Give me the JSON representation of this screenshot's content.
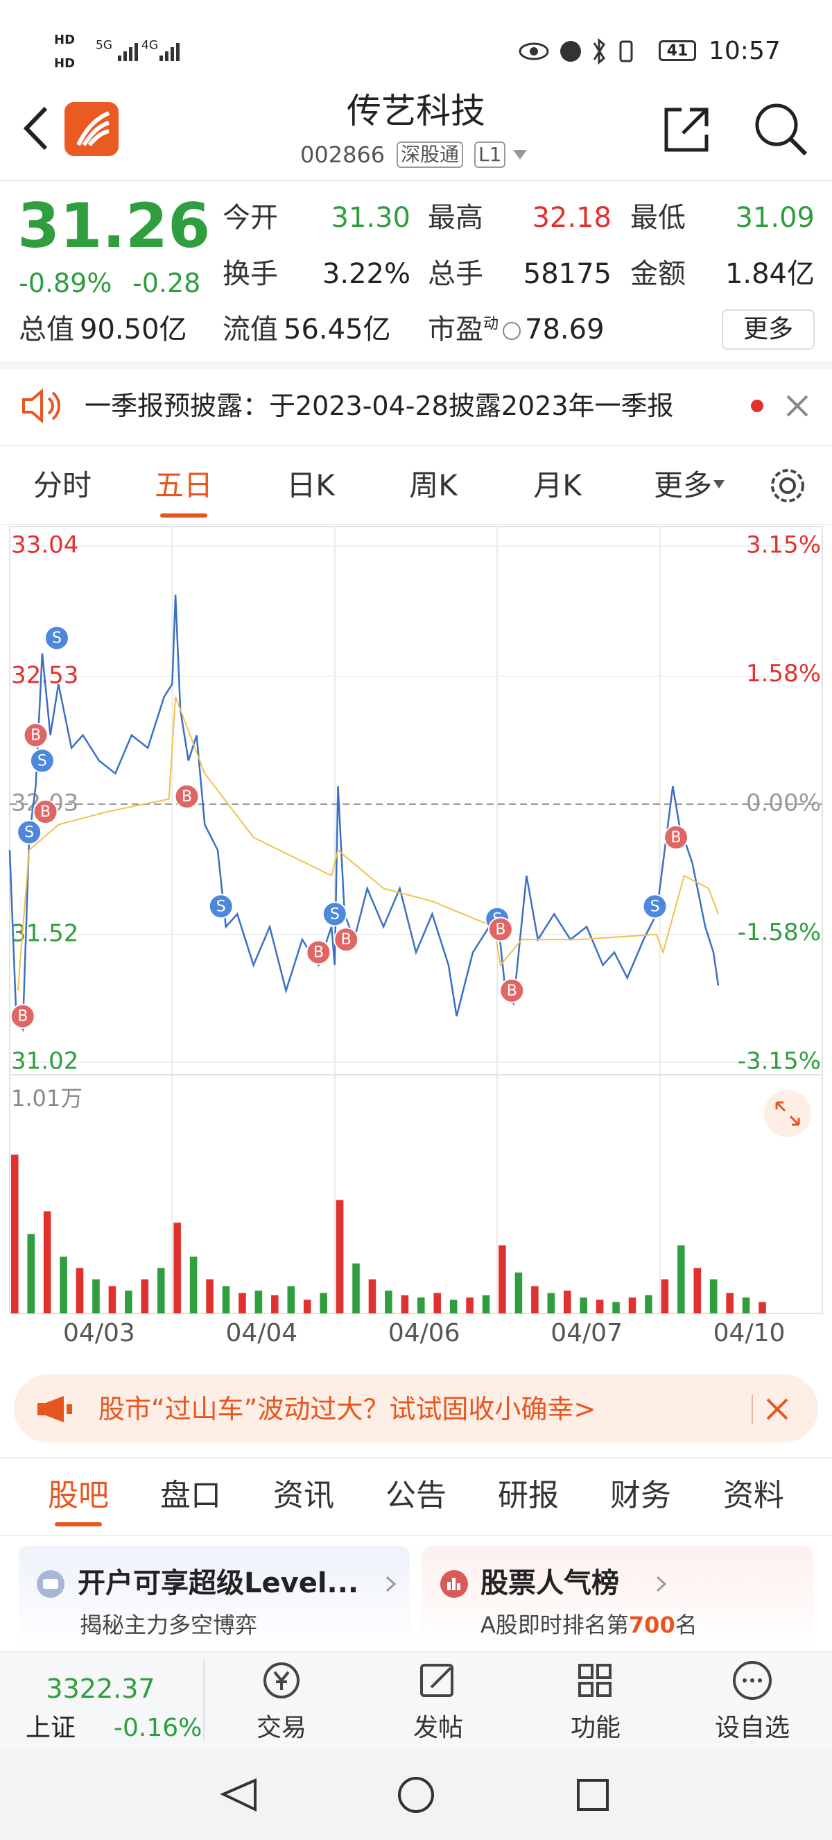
{
  "status": {
    "network": [
      "HD",
      "HD",
      "5G",
      "4G"
    ],
    "battery": "41",
    "time": "10:57"
  },
  "header": {
    "name": "传艺科技",
    "code": "002866",
    "tags": [
      "深股通",
      "L1"
    ]
  },
  "quote": {
    "price": "31.26",
    "change_pct": "-0.89%",
    "change": "-0.28",
    "color": "#2e9e3e",
    "fields": [
      {
        "label": "今开",
        "value": "31.30",
        "color": "#2e9e3e"
      },
      {
        "label": "最高",
        "value": "32.18",
        "color": "#e0312e"
      },
      {
        "label": "最低",
        "value": "31.09",
        "color": "#2e9e3e"
      },
      {
        "label": "换手",
        "value": "3.22%"
      },
      {
        "label": "总手",
        "value": "58175"
      },
      {
        "label": "金额",
        "value": "1.84亿"
      }
    ],
    "summary": [
      {
        "label": "总值",
        "value": "90.50亿"
      },
      {
        "label": "流值",
        "value": "56.45亿"
      },
      {
        "label": "市盈",
        "tag": "动",
        "value": "78.69"
      }
    ],
    "more": "更多"
  },
  "notice": "一季报预披露：于2023-04-28披露2023年一季报",
  "chart_tabs": {
    "items": [
      "分时",
      "五日",
      "日K",
      "周K",
      "月K",
      "更多"
    ],
    "active": 1
  },
  "chart_data": [
    {
      "type": "line",
      "xlim": [
        0,
        5
      ],
      "xticks": [
        {
          "value": 0.55,
          "label": "04/03"
        },
        {
          "value": 1.55,
          "label": "04/04"
        },
        {
          "value": 2.55,
          "label": "04/06"
        },
        {
          "value": 3.55,
          "label": "04/07"
        },
        {
          "value": 4.55,
          "label": "04/10"
        }
      ],
      "ylim": [
        31.02,
        33.04
      ],
      "yticks": [
        33.04,
        32.53,
        32.03,
        31.52,
        31.02
      ],
      "y2lim": [
        -3.15,
        3.15
      ],
      "y2ticks": [
        {
          "value": 3.15,
          "label": "3.15%"
        },
        {
          "value": 1.58,
          "label": "1.58%"
        },
        {
          "value": 0,
          "label": "0.00%"
        },
        {
          "value": -1.58,
          "label": "-1.58%"
        },
        {
          "value": -3.15,
          "label": "-3.15%"
        }
      ],
      "up_color": "#e0312e",
      "down_color": "#2e9e3e",
      "series": [
        {
          "color": "#3b6fc6",
          "x": [
            0,
            0.04,
            0.08,
            0.12,
            0.16,
            0.2,
            0.25,
            0.3,
            0.38,
            0.45,
            0.55,
            0.65,
            0.75,
            0.85,
            0.95,
            1,
            1.02,
            1.05,
            1.1,
            1.15,
            1.2,
            1.28,
            1.33,
            1.4,
            1.5,
            1.6,
            1.7,
            1.8,
            1.9,
            1.98,
            2,
            2.02,
            2.06,
            2.12,
            2.2,
            2.3,
            2.4,
            2.5,
            2.6,
            2.7,
            2.75,
            2.85,
            2.95,
            3,
            3.05,
            3.1,
            3.18,
            3.25,
            3.35,
            3.45,
            3.55,
            3.65,
            3.72,
            3.8,
            3.9,
            3.98,
            4,
            4.08,
            4.12,
            4.2,
            4.28,
            4.33,
            4.36
          ],
          "values": [
            31.85,
            31.2,
            31.15,
            31.9,
            32.1,
            32.62,
            32.3,
            32.5,
            32.25,
            32.3,
            32.2,
            32.15,
            32.3,
            32.25,
            32.45,
            32.5,
            32.85,
            32.4,
            32.2,
            32.3,
            31.95,
            31.85,
            31.55,
            31.6,
            31.4,
            31.55,
            31.3,
            31.5,
            31.4,
            31.55,
            31.4,
            32.1,
            31.6,
            31.5,
            31.7,
            31.55,
            31.7,
            31.45,
            31.6,
            31.4,
            31.2,
            31.45,
            31.55,
            31.6,
            31.3,
            31.25,
            31.75,
            31.5,
            31.6,
            31.5,
            31.55,
            31.4,
            31.45,
            31.35,
            31.5,
            31.6,
            31.7,
            32.1,
            31.95,
            31.8,
            31.55,
            31.45,
            31.32
          ]
        },
        {
          "color": "#f0c24a",
          "x": [
            0.05,
            0.12,
            0.3,
            0.6,
            0.98,
            1.02,
            1.2,
            1.5,
            1.98,
            2.02,
            2.3,
            2.6,
            2.98,
            3.02,
            3.15,
            3.5,
            3.98,
            4.02,
            4.15,
            4.3,
            4.36
          ],
          "values": [
            31.3,
            31.85,
            31.95,
            32.0,
            32.05,
            32.45,
            32.15,
            31.9,
            31.75,
            31.85,
            31.7,
            31.65,
            31.55,
            31.4,
            31.5,
            31.5,
            31.52,
            31.45,
            31.75,
            31.7,
            31.6
          ]
        }
      ],
      "marker_colors": {
        "B": "#e06666",
        "S": "#4d88dd"
      },
      "markers": [
        {
          "label": "S",
          "x": 0.29,
          "price": 32.68
        },
        {
          "label": "S",
          "x": 0.2,
          "price": 32.2
        },
        {
          "label": "S",
          "x": 0.12,
          "price": 31.92
        },
        {
          "label": "S",
          "x": 1.3,
          "price": 31.63
        },
        {
          "label": "S",
          "x": 2.0,
          "price": 31.6
        },
        {
          "label": "S",
          "x": 3.0,
          "price": 31.58
        },
        {
          "label": "S",
          "x": 3.97,
          "price": 31.63
        },
        {
          "label": "B",
          "x": 0.16,
          "price": 32.3
        },
        {
          "label": "B",
          "x": 0.08,
          "price": 31.2
        },
        {
          "label": "B",
          "x": 0.22,
          "price": 32.0
        },
        {
          "label": "B",
          "x": 1.09,
          "price": 32.06
        },
        {
          "label": "B",
          "x": 1.9,
          "price": 31.45
        },
        {
          "label": "B",
          "x": 2.07,
          "price": 31.5
        },
        {
          "label": "B",
          "x": 3.02,
          "price": 31.54
        },
        {
          "label": "B",
          "x": 3.09,
          "price": 31.3
        },
        {
          "label": "B",
          "x": 4.1,
          "price": 31.9
        }
      ]
    },
    {
      "type": "bar",
      "xlim": [
        0,
        5
      ],
      "ylim": [
        0,
        10100
      ],
      "yticks": [
        {
          "value": 10100,
          "label": "1.01万"
        }
      ],
      "x": [
        0,
        0.1,
        0.2,
        0.3,
        0.4,
        0.5,
        0.6,
        0.7,
        0.8,
        0.9,
        1,
        1.1,
        1.2,
        1.3,
        1.4,
        1.5,
        1.6,
        1.7,
        1.8,
        1.9,
        2,
        2.1,
        2.2,
        2.3,
        2.4,
        2.5,
        2.6,
        2.7,
        2.8,
        2.9,
        3,
        3.1,
        3.2,
        3.3,
        3.4,
        3.5,
        3.6,
        3.7,
        3.8,
        3.9,
        4,
        4.1,
        4.2,
        4.3,
        4.4,
        4.5,
        4.6
      ],
      "values": [
        7000,
        3500,
        4500,
        2500,
        2000,
        1500,
        1200,
        1000,
        1500,
        2000,
        4000,
        2500,
        1500,
        1200,
        900,
        1000,
        800,
        1200,
        600,
        900,
        5000,
        2200,
        1500,
        1000,
        800,
        700,
        900,
        600,
        700,
        800,
        3000,
        1800,
        1200,
        900,
        1000,
        700,
        600,
        500,
        700,
        800,
        1500,
        3000,
        2000,
        1500,
        900,
        700,
        500
      ],
      "colors": [
        "#e0312e",
        "#2e9e3e",
        "#e0312e",
        "#2e9e3e",
        "#e0312e",
        "#2e9e3e",
        "#e0312e",
        "#2e9e3e",
        "#e0312e",
        "#2e9e3e",
        "#e0312e",
        "#2e9e3e",
        "#e0312e",
        "#2e9e3e",
        "#e0312e",
        "#2e9e3e",
        "#e0312e",
        "#2e9e3e",
        "#e0312e",
        "#2e9e3e",
        "#e0312e",
        "#2e9e3e",
        "#e0312e",
        "#2e9e3e",
        "#e0312e",
        "#2e9e3e",
        "#e0312e",
        "#2e9e3e",
        "#e0312e",
        "#2e9e3e",
        "#e0312e",
        "#2e9e3e",
        "#e0312e",
        "#2e9e3e",
        "#e0312e",
        "#2e9e3e",
        "#e0312e",
        "#2e9e3e",
        "#e0312e",
        "#2e9e3e",
        "#e0312e",
        "#2e9e3e",
        "#e0312e",
        "#2e9e3e",
        "#e0312e",
        "#2e9e3e",
        "#e0312e"
      ]
    }
  ],
  "banner": "股市“过山车”波动过大？试试固收小确幸>",
  "section_tabs": {
    "items": [
      "股吧",
      "盘口",
      "资讯",
      "公告",
      "研报",
      "财务",
      "资料"
    ],
    "active": 0
  },
  "cards": [
    {
      "title": "开户可享超级Level...",
      "subtitle": "揭秘主力多空博弈"
    },
    {
      "title": "股票人气榜",
      "subtitle": [
        "A股即时排名第",
        "700",
        "名"
      ]
    }
  ],
  "bottom_nav": {
    "index": {
      "value": "3322.37",
      "name": "上证",
      "change": "-0.16%"
    },
    "items": [
      "交易",
      "发帖",
      "功能",
      "设自选"
    ]
  }
}
